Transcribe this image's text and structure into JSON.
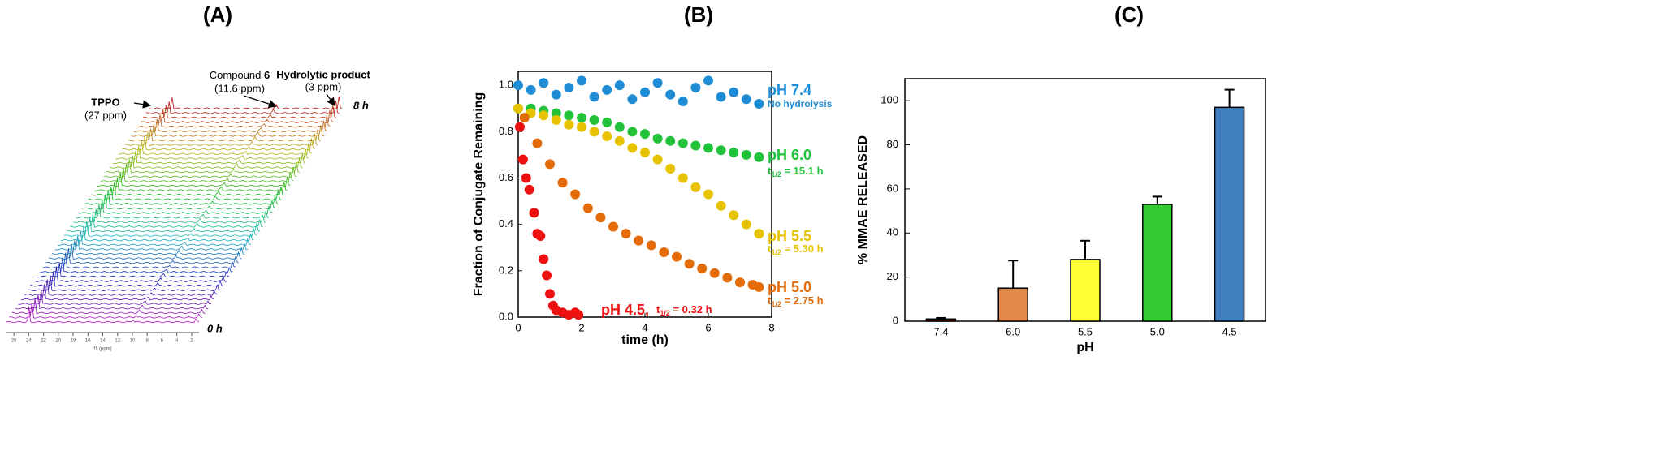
{
  "chart_data": [
    {
      "type": "nmr-stack",
      "panel": "(A)",
      "tppo": {
        "label": "TPPO",
        "shift": "(27 ppm)"
      },
      "compound": {
        "label": "Compound",
        "number": "6",
        "shift": "(11.6 ppm)"
      },
      "product": {
        "label": "Hydrolytic product",
        "shift": "(3 ppm)"
      },
      "time_end": "8 h",
      "time_start": "0 h",
      "xlabel": "f1 (ppm)",
      "xlim": [
        27,
        1
      ],
      "xticks": [
        26,
        24,
        22,
        20,
        18,
        16,
        14,
        12,
        10,
        8,
        6,
        4,
        2
      ]
    },
    {
      "type": "scatter",
      "panel": "(B)",
      "xlabel": "time (h)",
      "ylabel": "Fraction of Conjugate Remaining",
      "xlim": [
        0,
        8
      ],
      "xticks": [
        0,
        2,
        4,
        6,
        8
      ],
      "ylim": [
        0,
        1.06
      ],
      "yticks": [
        {
          "value": 0,
          "label": "0.0"
        },
        {
          "value": 0.2,
          "label": "0.2"
        },
        {
          "value": 0.4,
          "label": "0.4"
        },
        {
          "value": 0.6,
          "label": "0.6"
        },
        {
          "value": 0.8,
          "label": "0.8"
        },
        {
          "value": 1,
          "label": "1.0"
        }
      ],
      "series": [
        {
          "name": "pH 7.4",
          "note": "No hydrolysis",
          "color": "#1f8dd6",
          "x": [
            0,
            0.4,
            0.8,
            1.2,
            1.6,
            2.0,
            2.4,
            2.8,
            3.2,
            3.6,
            4.0,
            4.4,
            4.8,
            5.2,
            5.6,
            6.0,
            6.4,
            6.8,
            7.2,
            7.6
          ],
          "values": [
            1.0,
            0.98,
            1.01,
            0.96,
            0.99,
            1.02,
            0.95,
            0.98,
            1.0,
            0.94,
            0.97,
            1.01,
            0.96,
            0.93,
            0.99,
            1.02,
            0.95,
            0.97,
            0.94,
            0.92
          ]
        },
        {
          "name": "pH 6.0",
          "note": {
            "t": "t",
            "sub": "1/2",
            "rest": " = 15.1 h"
          },
          "color": "#22c33a",
          "x": [
            0,
            0.4,
            0.8,
            1.2,
            1.6,
            2.0,
            2.4,
            2.8,
            3.2,
            3.6,
            4.0,
            4.4,
            4.8,
            5.2,
            5.6,
            6.0,
            6.4,
            6.8,
            7.2,
            7.6
          ],
          "values": [
            0.9,
            0.9,
            0.89,
            0.88,
            0.87,
            0.86,
            0.85,
            0.84,
            0.82,
            0.8,
            0.79,
            0.77,
            0.76,
            0.75,
            0.74,
            0.73,
            0.72,
            0.71,
            0.7,
            0.69
          ]
        },
        {
          "name": "pH 5.5",
          "note": {
            "t": "t",
            "sub": "1/2",
            "rest": " = 5.30 h"
          },
          "color": "#e6c200",
          "x": [
            0,
            0.4,
            0.8,
            1.2,
            1.6,
            2.0,
            2.4,
            2.8,
            3.2,
            3.6,
            4.0,
            4.4,
            4.8,
            5.2,
            5.6,
            6.0,
            6.4,
            6.8,
            7.2,
            7.6
          ],
          "values": [
            0.9,
            0.88,
            0.87,
            0.85,
            0.83,
            0.82,
            0.8,
            0.78,
            0.76,
            0.73,
            0.71,
            0.68,
            0.64,
            0.6,
            0.56,
            0.53,
            0.48,
            0.44,
            0.4,
            0.36
          ]
        },
        {
          "name": "pH 5.0",
          "note": {
            "t": "t",
            "sub": "1/2",
            "rest": " = 2.75 h"
          },
          "color": "#e36c09",
          "x": [
            0.2,
            0.6,
            1.0,
            1.4,
            1.8,
            2.2,
            2.6,
            3.0,
            3.4,
            3.8,
            4.2,
            4.6,
            5.0,
            5.4,
            5.8,
            6.2,
            6.6,
            7.0,
            7.4,
            7.6
          ],
          "values": [
            0.86,
            0.75,
            0.66,
            0.58,
            0.53,
            0.47,
            0.43,
            0.39,
            0.36,
            0.33,
            0.31,
            0.28,
            0.26,
            0.23,
            0.21,
            0.19,
            0.17,
            0.15,
            0.14,
            0.13
          ]
        },
        {
          "name": "pH 4.5,",
          "note": {
            "t": "t",
            "sub": "1/2",
            "rest": " = 0.32 h"
          },
          "color": "#ee1111",
          "x": [
            0.05,
            0.15,
            0.25,
            0.35,
            0.5,
            0.6,
            0.7,
            0.8,
            0.9,
            1.0,
            1.1,
            1.2,
            1.4,
            1.6,
            1.8,
            1.9
          ],
          "values": [
            0.82,
            0.68,
            0.6,
            0.55,
            0.45,
            0.36,
            0.35,
            0.25,
            0.18,
            0.1,
            0.05,
            0.03,
            0.02,
            0.01,
            0.02,
            0.01
          ]
        }
      ]
    },
    {
      "type": "bar",
      "panel": "(C)",
      "xlabel": "pH",
      "ylabel": "% MMAE RELEASED",
      "categories": [
        "7.4",
        "6.0",
        "5.5",
        "5.0",
        "4.5"
      ],
      "values": [
        1,
        15,
        28,
        53,
        97
      ],
      "errors": [
        0.5,
        12.5,
        8.5,
        3.5,
        8
      ],
      "colors": [
        "#8b1a1a",
        "#e0894a",
        "#ffff33",
        "#33cc33",
        "#3f7fc0"
      ],
      "ylim": [
        0,
        110
      ],
      "yticks": [
        0,
        20,
        40,
        60,
        80,
        100
      ]
    }
  ]
}
